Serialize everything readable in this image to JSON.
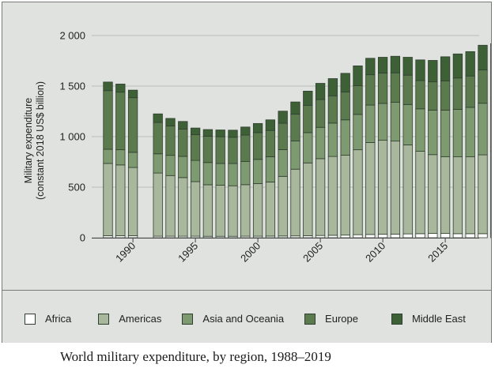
{
  "caption": "World military expenditure, by region, 1988–2019",
  "chart_data": {
    "type": "bar",
    "stacked": true,
    "ylabel_line1": "Military expenditure",
    "ylabel_line2": "(constant 2018 US$ billion)",
    "ylim": [
      0,
      2000
    ],
    "yticks": [
      0,
      500,
      1000,
      1500,
      2000
    ],
    "ytick_labels": [
      "0",
      "500",
      "1 000",
      "1 500",
      "2 000"
    ],
    "xticks": [
      1990,
      1995,
      2000,
      2005,
      2010,
      2015
    ],
    "xtick_labels": [
      "1990",
      "1995",
      "2000",
      "2005",
      "2010",
      "2015"
    ],
    "legend_position": "bottom",
    "years": [
      1988,
      1989,
      1990,
      1991,
      1992,
      1993,
      1994,
      1995,
      1996,
      1997,
      1998,
      1999,
      2000,
      2001,
      2002,
      2003,
      2004,
      2005,
      2006,
      2007,
      2008,
      2009,
      2010,
      2011,
      2012,
      2013,
      2014,
      2015,
      2016,
      2017,
      2018,
      2019
    ],
    "series": [
      {
        "name": "Africa",
        "color": "#ffffff",
        "values": [
          20,
          20,
          20,
          null,
          15,
          15,
          15,
          15,
          14,
          14,
          14,
          15,
          15,
          16,
          17,
          18,
          20,
          22,
          24,
          26,
          30,
          32,
          34,
          36,
          38,
          40,
          42,
          42,
          40,
          40,
          40,
          41
        ]
      },
      {
        "name": "Americas",
        "color": "#a9b79c",
        "values": [
          715,
          700,
          675,
          null,
          625,
          600,
          580,
          540,
          510,
          505,
          500,
          510,
          520,
          535,
          590,
          660,
          720,
          760,
          780,
          790,
          840,
          910,
          930,
          920,
          880,
          815,
          780,
          760,
          760,
          760,
          780,
          815
        ]
      },
      {
        "name": "Asia and Oceania",
        "color": "#7d9a70",
        "values": [
          140,
          150,
          150,
          null,
          190,
          200,
          210,
          210,
          220,
          215,
          220,
          230,
          240,
          250,
          265,
          280,
          300,
          310,
          330,
          350,
          350,
          370,
          365,
          385,
          400,
          420,
          440,
          460,
          470,
          490,
          510,
          530
        ]
      },
      {
        "name": "Europe",
        "color": "#5b7b4f",
        "values": [
          580,
          570,
          540,
          null,
          310,
          290,
          270,
          255,
          260,
          265,
          260,
          260,
          265,
          260,
          260,
          265,
          270,
          275,
          270,
          275,
          285,
          300,
          300,
          290,
          290,
          280,
          280,
          290,
          310,
          310,
          330,
          350
        ]
      },
      {
        "name": "Middle East",
        "color": "#3e6036",
        "values": [
          85,
          80,
          75,
          null,
          85,
          75,
          75,
          65,
          66,
          67,
          70,
          80,
          90,
          105,
          120,
          120,
          140,
          160,
          170,
          185,
          195,
          163,
          156,
          164,
          177,
          204,
          212,
          238,
          238,
          241,
          244,
          184
        ]
      }
    ]
  }
}
